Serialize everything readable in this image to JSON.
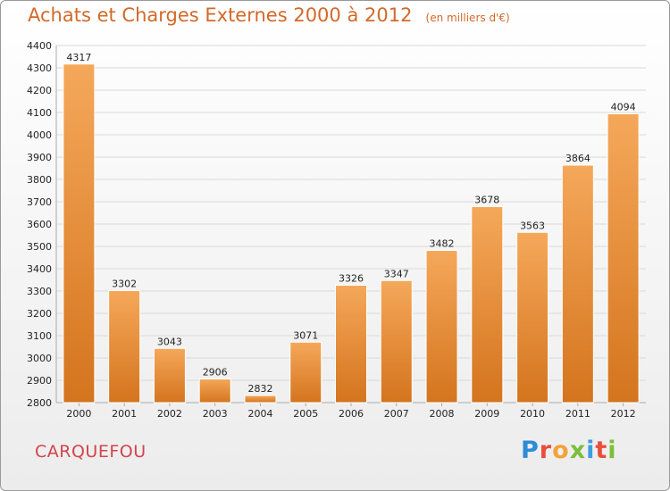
{
  "header": {
    "title": "Achats et Charges Externes 2000 à 2012",
    "subtitle": "(en milliers d'€)"
  },
  "footer": {
    "city": "CARQUEFOU",
    "logo": {
      "letters": [
        "P",
        "r",
        "o",
        "x",
        "i",
        "t",
        "i"
      ],
      "colors": [
        "#2e8bd6",
        "#e94e3c",
        "#f2a23a",
        "#7bbf3a",
        "#3c9ee0",
        "#e94e3c",
        "#7bbf3a"
      ]
    }
  },
  "colors": {
    "bar_top": "#f5a85a",
    "bar_bottom": "#d4741e",
    "grid": "#d9d9d9",
    "axis": "#aaaaaa"
  },
  "chart_data": {
    "type": "bar",
    "categories": [
      "2000",
      "2001",
      "2002",
      "2003",
      "2004",
      "2005",
      "2006",
      "2007",
      "2008",
      "2009",
      "2010",
      "2011",
      "2012"
    ],
    "values": [
      4317,
      3302,
      3043,
      2906,
      2832,
      3071,
      3326,
      3347,
      3482,
      3678,
      3563,
      3864,
      4094
    ],
    "ylim": [
      2800,
      4400
    ],
    "yticks": [
      2800,
      2900,
      3000,
      3100,
      3200,
      3300,
      3400,
      3500,
      3600,
      3700,
      3800,
      3900,
      4000,
      4100,
      4200,
      4300,
      4400
    ],
    "grid": true,
    "legend": "none"
  }
}
